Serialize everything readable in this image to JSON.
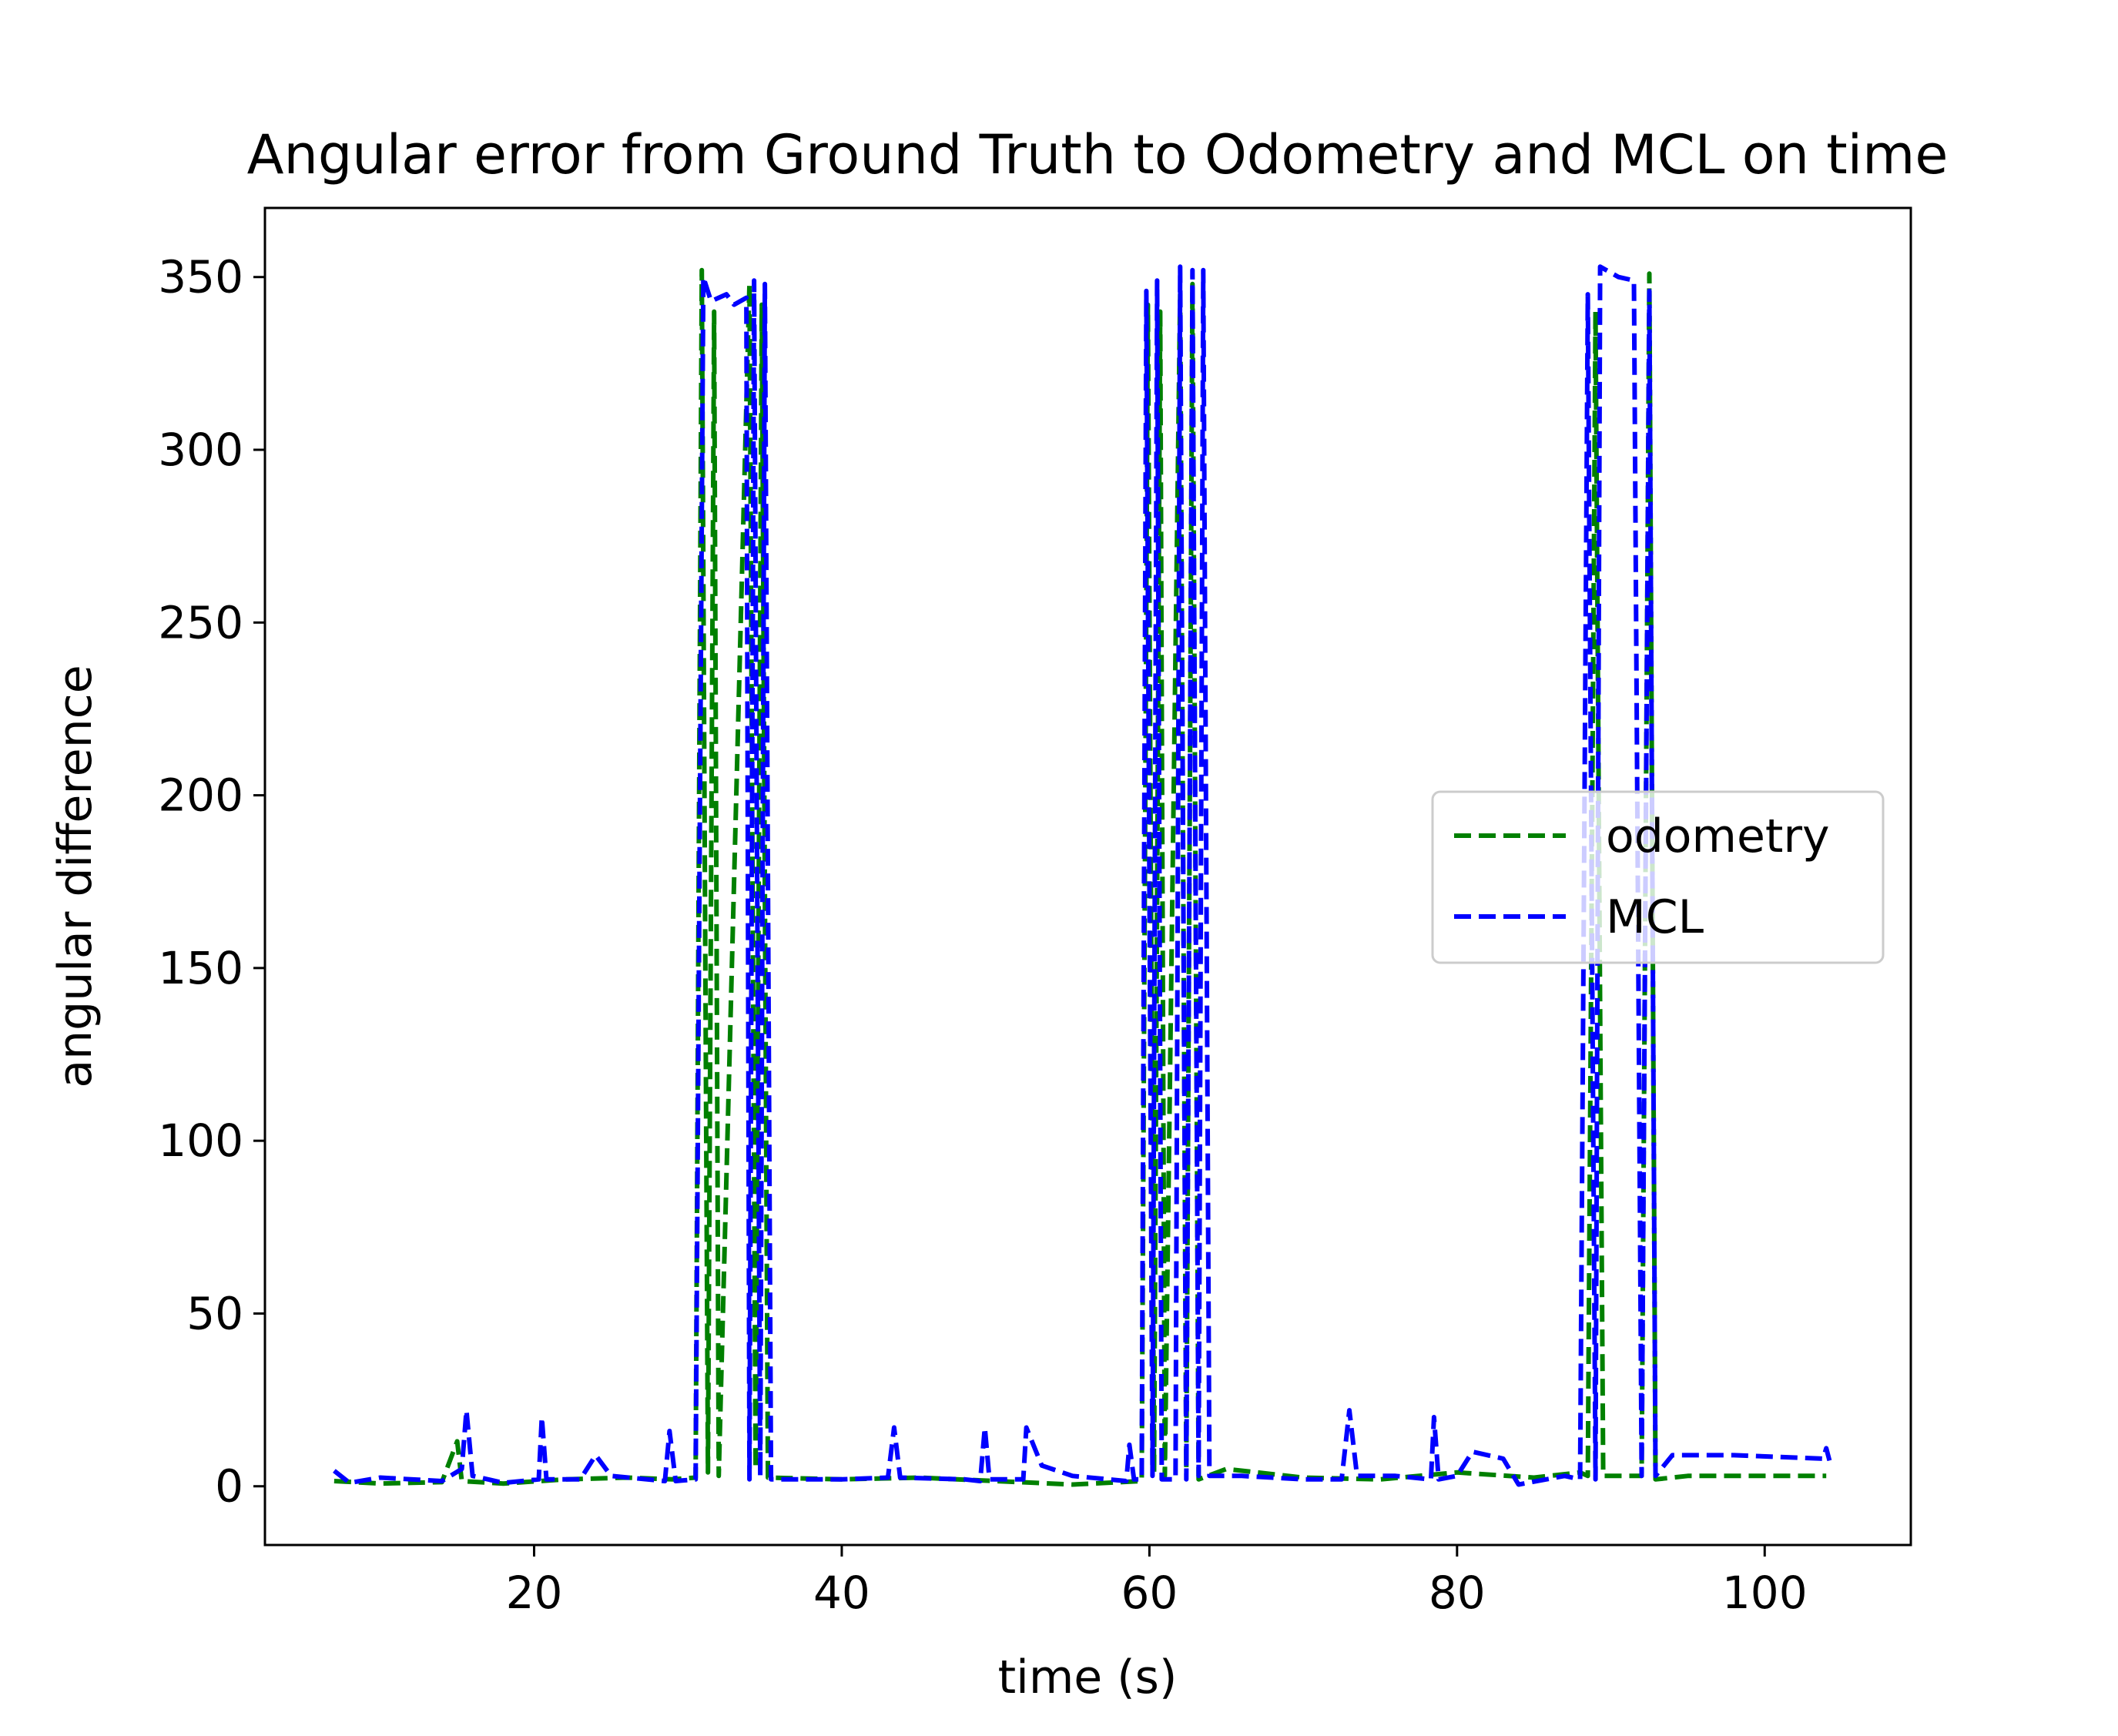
{
  "chart_data": {
    "type": "line",
    "title": "Angular error from Ground Truth to Odometry and MCL on time",
    "xlabel": "time (s)",
    "ylabel": "angular difference",
    "xlim": [
      2.5,
      109.5
    ],
    "ylim": [
      -17,
      370
    ],
    "x_ticks": [
      20,
      40,
      60,
      80,
      100
    ],
    "y_ticks": [
      0,
      50,
      100,
      150,
      200,
      250,
      300,
      350
    ],
    "grid": false,
    "legend_position": "center-right",
    "series": [
      {
        "name": "odometry",
        "color": "#008000",
        "linestyle": "dashed",
        "points": [
          [
            7.0,
            1.5
          ],
          [
            10.0,
            0.8
          ],
          [
            14.0,
            1.2
          ],
          [
            15.0,
            13.0
          ],
          [
            15.3,
            1.5
          ],
          [
            18.0,
            0.8
          ],
          [
            22.0,
            2.0
          ],
          [
            26.0,
            2.5
          ],
          [
            29.0,
            2.0
          ],
          [
            30.5,
            2.5
          ],
          [
            30.9,
            352.0
          ],
          [
            31.3,
            4.0
          ],
          [
            31.7,
            340.0
          ],
          [
            32.0,
            3.0
          ],
          [
            34.0,
            348.0
          ],
          [
            34.4,
            5.0
          ],
          [
            34.8,
            342.0
          ],
          [
            35.2,
            2.5
          ],
          [
            40.0,
            2.0
          ],
          [
            45.0,
            2.5
          ],
          [
            50.0,
            1.5
          ],
          [
            55.0,
            0.5
          ],
          [
            59.5,
            1.5
          ],
          [
            59.9,
            342.0
          ],
          [
            60.3,
            4.0
          ],
          [
            60.7,
            340.0
          ],
          [
            61.0,
            3.0
          ],
          [
            62.0,
            345.0
          ],
          [
            62.4,
            5.0
          ],
          [
            62.8,
            348.0
          ],
          [
            63.2,
            2.0
          ],
          [
            65.0,
            5.0
          ],
          [
            70.0,
            2.5
          ],
          [
            75.0,
            2.0
          ],
          [
            80.0,
            4.0
          ],
          [
            85.0,
            2.5
          ],
          [
            88.0,
            4.0
          ],
          [
            88.5,
            3.0
          ],
          [
            89.0,
            340.0
          ],
          [
            89.5,
            3.0
          ],
          [
            92.0,
            3.0
          ],
          [
            92.5,
            351.0
          ],
          [
            92.9,
            2.0
          ],
          [
            95.0,
            3.0
          ],
          [
            104.0,
            3.0
          ]
        ]
      },
      {
        "name": "MCL",
        "color": "#0000ff",
        "linestyle": "dashed",
        "points": [
          [
            7.0,
            4.5
          ],
          [
            8.0,
            1.0
          ],
          [
            10.0,
            2.5
          ],
          [
            14.0,
            1.5
          ],
          [
            15.3,
            5.0
          ],
          [
            15.6,
            22.0
          ],
          [
            16.0,
            3.0
          ],
          [
            18.0,
            1.0
          ],
          [
            20.3,
            2.0
          ],
          [
            20.5,
            20.0
          ],
          [
            20.8,
            2.0
          ],
          [
            23.0,
            2.0
          ],
          [
            24.0,
            9.0
          ],
          [
            25.0,
            3.0
          ],
          [
            28.5,
            1.5
          ],
          [
            28.8,
            16.0
          ],
          [
            29.2,
            1.5
          ],
          [
            30.5,
            2.0
          ],
          [
            31.0,
            350.0
          ],
          [
            31.5,
            343.0
          ],
          [
            32.0,
            344.0
          ],
          [
            32.5,
            345.0
          ],
          [
            33.0,
            342.0
          ],
          [
            33.8,
            344.0
          ],
          [
            34.0,
            2.0
          ],
          [
            34.3,
            349.0
          ],
          [
            34.7,
            3.0
          ],
          [
            35.0,
            348.0
          ],
          [
            35.4,
            2.0
          ],
          [
            40.0,
            2.0
          ],
          [
            43.0,
            2.5
          ],
          [
            43.4,
            17.0
          ],
          [
            43.8,
            2.5
          ],
          [
            48.0,
            2.0
          ],
          [
            49.0,
            1.5
          ],
          [
            49.3,
            17.0
          ],
          [
            49.6,
            2.0
          ],
          [
            51.8,
            2.0
          ],
          [
            52.0,
            17.0
          ],
          [
            53.0,
            6.0
          ],
          [
            55.0,
            3.0
          ],
          [
            58.5,
            1.5
          ],
          [
            58.7,
            12.0
          ],
          [
            59.0,
            2.0
          ],
          [
            59.5,
            2.0
          ],
          [
            59.8,
            346.0
          ],
          [
            60.2,
            3.0
          ],
          [
            60.5,
            349.0
          ],
          [
            60.8,
            2.0
          ],
          [
            61.7,
            2.0
          ],
          [
            62.0,
            353.0
          ],
          [
            62.4,
            2.0
          ],
          [
            62.8,
            352.0
          ],
          [
            63.2,
            3.0
          ],
          [
            63.5,
            352.0
          ],
          [
            63.9,
            3.0
          ],
          [
            66.0,
            3.0
          ],
          [
            70.0,
            2.0
          ],
          [
            72.5,
            2.0
          ],
          [
            73.0,
            22.0
          ],
          [
            73.5,
            3.0
          ],
          [
            76.0,
            3.0
          ],
          [
            78.3,
            2.0
          ],
          [
            78.5,
            20.0
          ],
          [
            78.8,
            2.0
          ],
          [
            80.0,
            3.0
          ],
          [
            81.0,
            10.0
          ],
          [
            83.0,
            8.0
          ],
          [
            84.0,
            0.5
          ],
          [
            87.0,
            3.0
          ],
          [
            88.0,
            2.0
          ],
          [
            88.5,
            345.0
          ],
          [
            89.0,
            2.0
          ],
          [
            89.3,
            353.0
          ],
          [
            90.5,
            350.0
          ],
          [
            91.5,
            349.0
          ],
          [
            92.0,
            3.0
          ],
          [
            92.5,
            346.0
          ],
          [
            92.9,
            3.0
          ],
          [
            94.0,
            9.0
          ],
          [
            98.0,
            9.0
          ],
          [
            103.8,
            8.0
          ],
          [
            104.0,
            11.0
          ],
          [
            104.3,
            6.0
          ]
        ]
      }
    ]
  }
}
